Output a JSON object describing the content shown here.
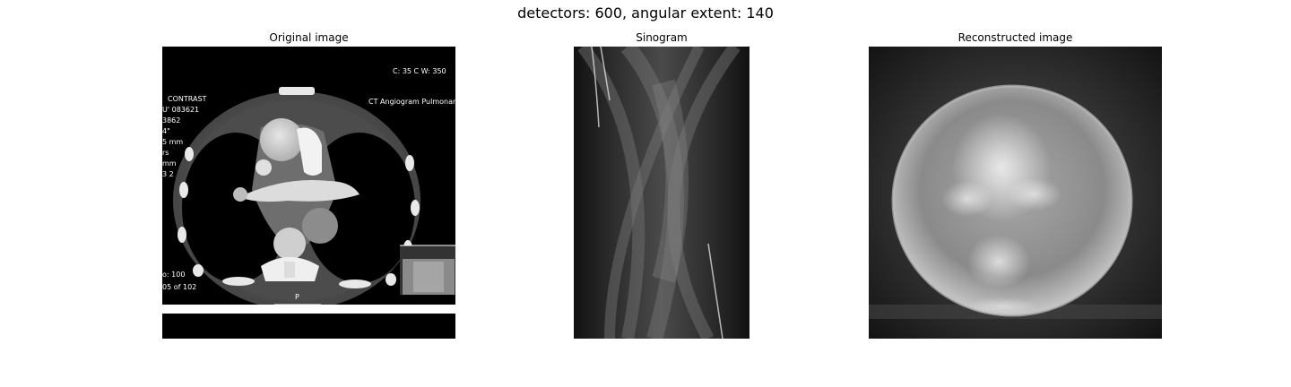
{
  "figure": {
    "suptitle": "detectors: 600, angular extent: 140"
  },
  "panels": {
    "original": {
      "title": "Original image",
      "overlay": {
        "top_right": "C: 35 C  W: 350",
        "contrast": "CONTRAST",
        "angio": "CT Angiogram Pulmonar",
        "left_lines": [
          "U' 083621",
          "3862",
          "4\"",
          "5 mm",
          "rs",
          "mm",
          "3 2"
        ],
        "bottom_left_1": "o: 100",
        "bottom_left_2": "05 of 102",
        "marker_p": "P"
      }
    },
    "sinogram": {
      "title": "Sinogram"
    },
    "reconstructed": {
      "title": "Reconstructed image"
    }
  }
}
